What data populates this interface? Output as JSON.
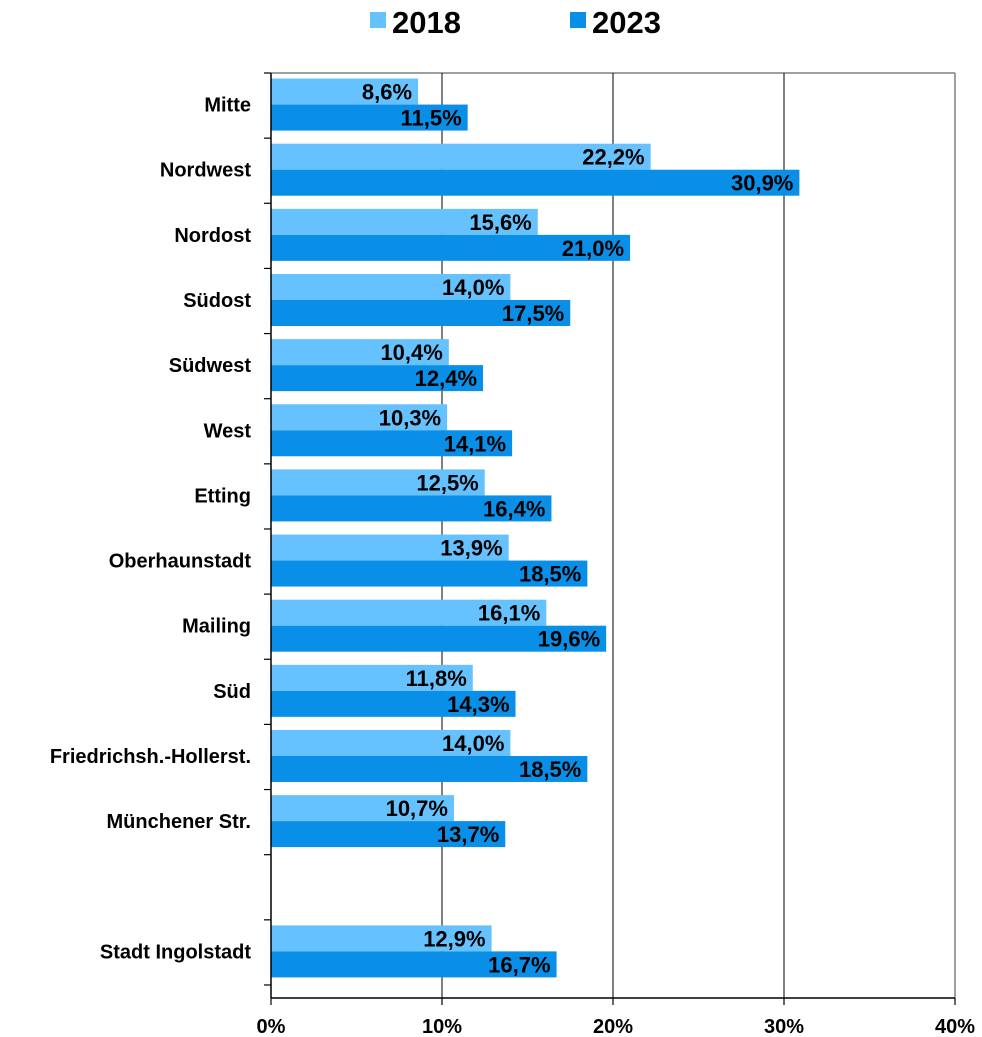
{
  "chart_data": {
    "type": "bar",
    "orientation": "horizontal",
    "categories": [
      "Mitte",
      "Nordwest",
      "Nordost",
      "Südost",
      "Südwest",
      "West",
      "Etting",
      "Oberhaunstadt",
      "Mailing",
      "Süd",
      "Friedrichsh.-Hollerst.",
      "Münchener Str.",
      "",
      "Stadt Ingolstadt"
    ],
    "series": [
      {
        "name": "2018",
        "color": "#66c2ff",
        "values": [
          8.6,
          22.2,
          15.6,
          14.0,
          10.4,
          10.3,
          12.5,
          13.9,
          16.1,
          11.8,
          14.0,
          10.7,
          null,
          12.9
        ],
        "labels": [
          "8,6%",
          "22,2%",
          "15,6%",
          "14,0%",
          "10,4%",
          "10,3%",
          "12,5%",
          "13,9%",
          "16,1%",
          "11,8%",
          "14,0%",
          "10,7%",
          "",
          "12,9%"
        ]
      },
      {
        "name": "2023",
        "color": "#0a8fe8",
        "values": [
          11.5,
          30.9,
          21.0,
          17.5,
          12.4,
          14.1,
          16.4,
          18.5,
          19.6,
          14.3,
          18.5,
          13.7,
          null,
          16.7
        ],
        "labels": [
          "11,5%",
          "30,9%",
          "21,0%",
          "17,5%",
          "12,4%",
          "14,1%",
          "16,4%",
          "18,5%",
          "19,6%",
          "14,3%",
          "18,5%",
          "13,7%",
          "",
          "16,7%"
        ]
      }
    ],
    "xlim": [
      0,
      40
    ],
    "x_ticks": [
      0,
      10,
      20,
      30,
      40
    ],
    "x_tick_labels": [
      "0%",
      "10%",
      "20%",
      "30%",
      "40%"
    ],
    "grid": "vertical",
    "legend_position": "top-center",
    "title": "",
    "xlabel": "",
    "ylabel": ""
  }
}
